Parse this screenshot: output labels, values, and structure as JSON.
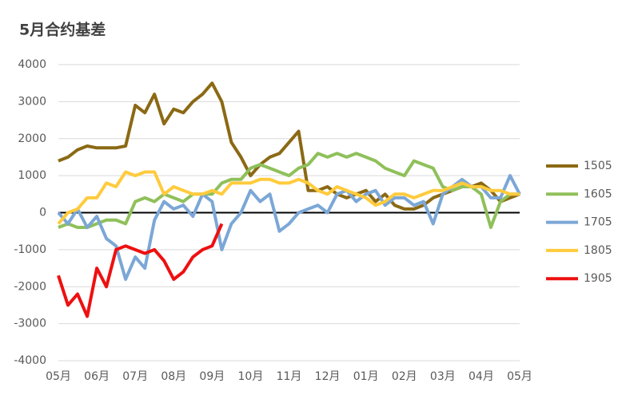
{
  "chart_data": {
    "type": "line",
    "title": "5月合约基差",
    "categories": [
      "05月",
      null,
      null,
      null,
      "06月",
      null,
      null,
      null,
      "07月",
      null,
      null,
      null,
      "08月",
      null,
      null,
      null,
      "09月",
      null,
      null,
      null,
      "10月",
      null,
      null,
      null,
      "11月",
      null,
      null,
      null,
      "12月",
      null,
      null,
      null,
      "01月",
      null,
      null,
      null,
      "02月",
      null,
      null,
      null,
      "03月",
      null,
      null,
      null,
      "04月",
      null,
      null,
      null,
      "05月"
    ],
    "ylim": [
      -4000,
      4000
    ],
    "yticks": [
      -4000,
      -3000,
      -2000,
      -1000,
      0,
      1000,
      2000,
      3000,
      4000
    ],
    "grid": true,
    "legend": "right",
    "series": [
      {
        "name": "1505",
        "color": "#8b6914",
        "values": [
          1400,
          1500,
          1700,
          1800,
          1750,
          1750,
          1750,
          1800,
          2900,
          2700,
          3200,
          2400,
          2800,
          2700,
          3000,
          3200,
          3500,
          3000,
          1900,
          1500,
          1000,
          1300,
          1500,
          1600,
          1900,
          2200,
          600,
          600,
          700,
          500,
          400,
          500,
          600,
          300,
          500,
          200,
          100,
          100,
          200,
          400,
          500,
          600,
          700,
          700,
          800,
          600,
          300,
          400,
          500
        ]
      },
      {
        "name": "1605",
        "color": "#8fc05a",
        "values": [
          -400,
          -300,
          -400,
          -400,
          -300,
          -200,
          -200,
          -300,
          300,
          400,
          300,
          500,
          400,
          300,
          500,
          500,
          500,
          800,
          900,
          900,
          1200,
          1300,
          1200,
          1100,
          1000,
          1200,
          1300,
          1600,
          1500,
          1600,
          1500,
          1600,
          1500,
          1400,
          1200,
          1100,
          1000,
          1400,
          1300,
          1200,
          700,
          600,
          700,
          700,
          500,
          -400,
          300,
          500,
          500
        ]
      },
      {
        "name": "1705",
        "color": "#7ba7d6",
        "values": [
          0,
          -300,
          100,
          -400,
          -100,
          -700,
          -900,
          -1800,
          -1200,
          -1500,
          -200,
          300,
          100,
          200,
          -100,
          500,
          300,
          -1000,
          -300,
          0,
          600,
          300,
          500,
          -500,
          -300,
          0,
          100,
          200,
          0,
          500,
          600,
          300,
          500,
          600,
          200,
          400,
          400,
          200,
          300,
          -300,
          500,
          700,
          900,
          700,
          700,
          400,
          400,
          1000,
          500
        ]
      },
      {
        "name": "1805",
        "color": "#ffcb3d",
        "values": [
          -300,
          0,
          100,
          400,
          400,
          800,
          700,
          1100,
          1000,
          1100,
          1100,
          500,
          700,
          600,
          500,
          500,
          600,
          500,
          800,
          800,
          800,
          900,
          900,
          800,
          800,
          900,
          800,
          600,
          500,
          700,
          600,
          500,
          400,
          200,
          300,
          500,
          500,
          400,
          500,
          600,
          600,
          700,
          800,
          700,
          700,
          600,
          600,
          500,
          500
        ]
      },
      {
        "name": "1905",
        "color": "#ee1010",
        "values": [
          -1700,
          -2500,
          -2200,
          -2800,
          -1500,
          -2000,
          -1000,
          -900,
          -1000,
          -1100,
          -1000,
          -1300,
          -1800,
          -1600,
          -1200,
          -1000,
          -900,
          -300,
          null,
          null,
          null,
          null,
          null,
          null,
          null,
          null,
          null,
          null,
          null,
          null,
          null,
          null,
          null,
          null,
          null,
          null,
          null,
          null,
          null,
          null,
          null,
          null,
          null,
          null,
          null,
          null,
          null,
          null,
          null
        ]
      }
    ]
  }
}
